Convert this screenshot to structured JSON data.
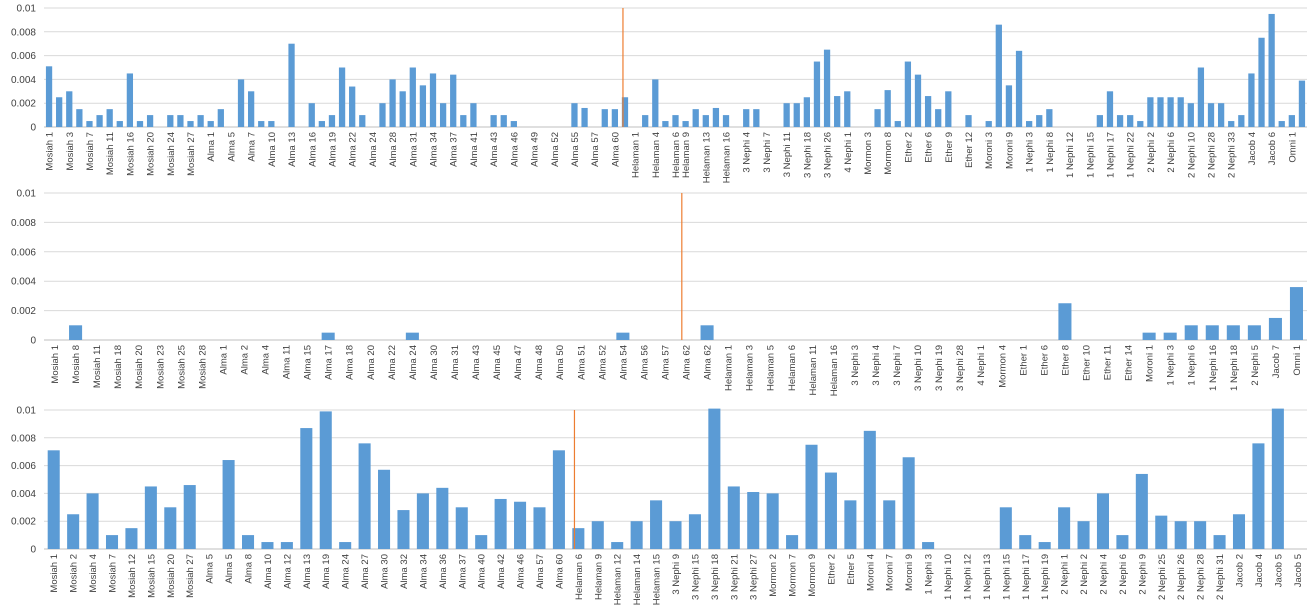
{
  "colors": {
    "bar": "#5b9bd5",
    "marker": "#ed7d31",
    "grid": "#d9d9d9",
    "text": "#404040"
  },
  "chart_data": [
    {
      "type": "bar",
      "title": "",
      "xlabel": "",
      "ylabel": "",
      "ylim": [
        0,
        0.01
      ],
      "yticks": [
        "0",
        "0.002",
        "0.004",
        "0.006",
        "0.008",
        "0.01"
      ],
      "grid": true,
      "categories_labeled": [
        "Mosiah 1",
        "Mosiah 3",
        "Mosiah 7",
        "Mosiah 11",
        "Mosiah 16",
        "Mosiah 20",
        "Mosiah 24",
        "Mosiah 27",
        "Alma 1",
        "Alma 5",
        "Alma 7",
        "Alma 10",
        "Alma 13",
        "Alma 16",
        "Alma 19",
        "Alma 22",
        "Alma 24",
        "Alma 28",
        "Alma 31",
        "Alma 34",
        "Alma 37",
        "Alma 41",
        "Alma 43",
        "Alma 46",
        "Alma 49",
        "Alma 52",
        "Alma 55",
        "Alma 57",
        "Alma 60",
        "Helaman 1",
        "Helaman 4",
        "Helaman 6",
        "Helaman 9",
        "Helaman 13",
        "Helaman 16",
        "3 Nephi 4",
        "3 Nephi 7",
        "3 Nephi 11",
        "3 Nephi 18",
        "3 Nephi 26",
        "4 Nephi 1",
        "Mormon 3",
        "Mormon 8",
        "Ether 2",
        "Ether 6",
        "Ether 9",
        "Ether 12",
        "Moroni 3",
        "Moroni 9",
        "1 Nephi 3",
        "1 Nephi 8",
        "1 Nephi 12",
        "1 Nephi 15",
        "1 Nephi 17",
        "1 Nephi 22",
        "2 Nephi 2",
        "2 Nephi 6",
        "2 Nephi 10",
        "2 Nephi 28",
        "2 Nephi 33",
        "Jacob 4",
        "Jacob 6",
        "Omni 1"
      ],
      "values": [
        0.0051,
        0.0025,
        0.003,
        0.0015,
        0.0005,
        0.001,
        0.0015,
        0.0005,
        0.0045,
        0.0005,
        0.001,
        0,
        0.001,
        0.001,
        0.0005,
        0.001,
        0.0005,
        0.0015,
        0,
        0.004,
        0.003,
        0.0005,
        0.0005,
        0,
        0.007,
        0,
        0.002,
        0.0005,
        0.001,
        0.005,
        0.0034,
        0.001,
        0,
        0.002,
        0.004,
        0.003,
        0.005,
        0.0035,
        0.0045,
        0.002,
        0.0044,
        0.001,
        0.002,
        0,
        0.001,
        0.001,
        0.0005,
        0,
        0,
        0,
        0,
        0,
        0.002,
        0.0016,
        0,
        0.0015,
        0.0015,
        0.0025,
        0,
        0.001,
        0.004,
        0.0005,
        0.001,
        0.0005,
        0.0015,
        0.001,
        0.0016,
        0.001,
        0,
        0.0015,
        0.0015,
        0,
        0,
        0.002,
        0.002,
        0.0025,
        0.0055,
        0.0065,
        0.0026,
        0.003,
        0,
        0,
        0.0015,
        0.0031,
        0.0005,
        0.0055,
        0.0044,
        0.0026,
        0.0015,
        0.003,
        0,
        0.001,
        0,
        0.0005,
        0.0086,
        0.0035,
        0.0064,
        0.0005,
        0.001,
        0.0015,
        0,
        0,
        0,
        0,
        0.001,
        0.003,
        0.001,
        0.001,
        0.0005,
        0.0025,
        0.0025,
        0.0025,
        0.0025,
        0.002,
        0.005,
        0.002,
        0.002,
        0.0005,
        0.001,
        0.0045,
        0.0075,
        0.0095,
        0.0005,
        0.001,
        0.0039
      ],
      "marker_category": "Alma 60"
    },
    {
      "type": "bar",
      "title": "",
      "xlabel": "",
      "ylabel": "",
      "ylim": [
        0,
        0.01
      ],
      "yticks": [
        "0",
        "0.002",
        "0.004",
        "0.006",
        "0.008",
        "0.01"
      ],
      "grid": true,
      "categories_labeled": [
        "Mosiah 1",
        "Mosiah 8",
        "Mosiah 11",
        "Mosiah 18",
        "Mosiah 20",
        "Mosiah 23",
        "Mosiah 25",
        "Mosiah 28",
        "Alma 1",
        "Alma 2",
        "Alma 4",
        "Alma 11",
        "Alma 15",
        "Alma 17",
        "Alma 18",
        "Alma 20",
        "Alma 22",
        "Alma 24",
        "Alma 30",
        "Alma 31",
        "Alma 43",
        "Alma 45",
        "Alma 47",
        "Alma 48",
        "Alma 50",
        "Alma 51",
        "Alma 52",
        "Alma 54",
        "Alma 56",
        "Alma 57",
        "Alma 62",
        "Alma 62",
        "Helaman 1",
        "Helaman 3",
        "Helaman 5",
        "Helaman 6",
        "Helaman 11",
        "Helaman 16",
        "3 Nephi 3",
        "3 Nephi 4",
        "3 Nephi 7",
        "3 Nephi 10",
        "3 Nephi 19",
        "3 Nephi 28",
        "4 Nephi 1",
        "Mormon 4",
        "Ether 1",
        "Ether 6",
        "Ether 8",
        "Ether 10",
        "Ether 11",
        "Ether 14",
        "Moroni 1",
        "1 Nephi 3",
        "1 Nephi 6",
        "1 Nephi 16",
        "1 Nephi 18",
        "2 Nephi 5",
        "Jacob 7",
        "Omni 1"
      ],
      "values": [
        0,
        0.001,
        0,
        0,
        0,
        0,
        0,
        0,
        0,
        0,
        0,
        0,
        0,
        0.0005,
        0,
        0,
        0,
        0.0005,
        0,
        0,
        0,
        0,
        0,
        0,
        0,
        0,
        0,
        0.0005,
        0,
        0,
        0,
        0.001,
        0,
        0,
        0,
        0,
        0,
        0,
        0,
        0,
        0,
        0,
        0,
        0,
        0,
        0,
        0,
        0,
        0.0025,
        0,
        0,
        0,
        0.0005,
        0.0005,
        0.001,
        0.001,
        0.001,
        0.001,
        0.0015,
        0.0036
      ],
      "marker_category": "Alma 57"
    },
    {
      "type": "bar",
      "title": "",
      "xlabel": "",
      "ylabel": "",
      "ylim": [
        0,
        0.01
      ],
      "yticks": [
        "0",
        "0.002",
        "0.004",
        "0.006",
        "0.008",
        "0.01"
      ],
      "grid": true,
      "categories_labeled": [
        "Mosiah 1",
        "Mosiah 2",
        "Mosiah 4",
        "Mosiah 7",
        "Mosiah 12",
        "Mosiah 15",
        "Mosiah 20",
        "Mosiah 27",
        "Alma 5",
        "Alma 5",
        "Alma 8",
        "Alma 10",
        "Alma 12",
        "Alma 13",
        "Alma 19",
        "Alma 24",
        "Alma 27",
        "Alma 30",
        "Alma 32",
        "Alma 34",
        "Alma 36",
        "Alma 37",
        "Alma 40",
        "Alma 42",
        "Alma 46",
        "Alma 57",
        "Alma 60",
        "Helaman 6",
        "Helaman 9",
        "Helaman 12",
        "Helaman 14",
        "Helaman 15",
        "3 Nephi 9",
        "3 Nephi 15",
        "3 Nephi 18",
        "3 Nephi 21",
        "3 Nephi 27",
        "Mormon 2",
        "Mormon 7",
        "Mormon 9",
        "Ether 2",
        "Ether 5",
        "Moroni 4",
        "Moroni 7",
        "Moroni 9",
        "1 Nephi 3",
        "1 Nephi 10",
        "1 Nephi 12",
        "1 Nephi 13",
        "1 Nephi 15",
        "1 Nephi 17",
        "1 Nephi 19",
        "2 Nephi 1",
        "2 Nephi 2",
        "2 Nephi 4",
        "2 Nephi 6",
        "2 Nephi 9",
        "2 Nephi 25",
        "2 Nephi 26",
        "2 Nephi 28",
        "2 Nephi 31",
        "Jacob 2",
        "Jacob 4",
        "Jacob 5",
        "Jacob 5"
      ],
      "values": [
        0.0071,
        0.0025,
        0.004,
        0.001,
        0.0015,
        0.0045,
        0.003,
        0.0046,
        0,
        0.0064,
        0.001,
        0.0005,
        0.0005,
        0.0087,
        0.0099,
        0.0005,
        0.0076,
        0.0057,
        0.0028,
        0.004,
        0.0044,
        0.003,
        0.001,
        0.0036,
        0.0034,
        0.003,
        0.0071,
        0.0015,
        0.002,
        0.0005,
        0.002,
        0.0035,
        0.002,
        0.0025,
        0.0101,
        0.0045,
        0.0041,
        0.004,
        0.001,
        0.0075,
        0.0055,
        0.0035,
        0.0085,
        0.0035,
        0.0066,
        0.0005,
        0,
        0,
        0,
        0.003,
        0.001,
        0.0005,
        0.003,
        0.002,
        0.004,
        0.001,
        0.0054,
        0.0024,
        0.002,
        0.002,
        0.001,
        0.0025,
        0.0076,
        0.0101,
        0
      ],
      "marker_category": "Alma 60"
    }
  ]
}
